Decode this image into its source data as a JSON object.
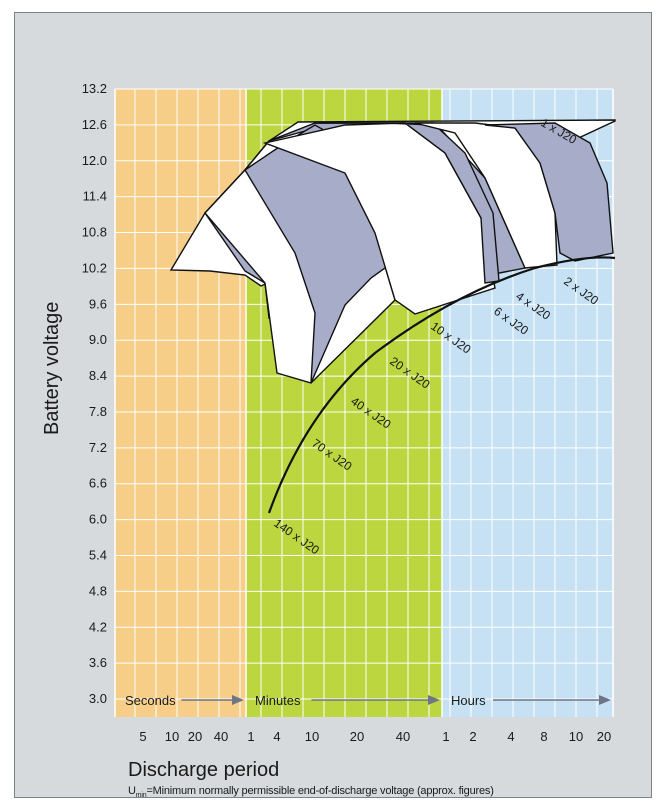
{
  "chart_data": {
    "type": "line",
    "ylabel": "Battery voltage",
    "xlabel": "Discharge period",
    "footnote": {
      "symbol": "U",
      "subscript": "min",
      "text": "=Minimum normally permissible end-of-discharge voltage (approx. figures)"
    },
    "yticks": [
      "13.2",
      "12.6",
      "12.0",
      "11.4",
      "10.8",
      "10.2",
      "9.6",
      "9.0",
      "8.4",
      "7.8",
      "7.2",
      "6.6",
      "6.0",
      "5.4",
      "4.8",
      "4.2",
      "3.6",
      "3.0"
    ],
    "ylim": [
      3.0,
      13.2
    ],
    "regions": [
      {
        "name": "Seconds",
        "color": "#f6ce88",
        "xticks": [
          "5",
          "10",
          "20",
          "40"
        ]
      },
      {
        "name": "Minutes",
        "color": "#bcd63f",
        "xticks": [
          "1",
          "4",
          "10",
          "20",
          "40"
        ]
      },
      {
        "name": "Hours",
        "color": "#c6e1f4",
        "xticks": [
          "1",
          "2",
          "4",
          "8",
          "10",
          "20"
        ]
      }
    ],
    "grid": true,
    "band_colors": [
      "#ffffff",
      "#a7adc9"
    ],
    "series": [
      {
        "name": "1 x J20"
      },
      {
        "name": "2 x J20"
      },
      {
        "name": "4 x J20"
      },
      {
        "name": "6 x J20"
      },
      {
        "name": "10 x J20"
      },
      {
        "name": "20 x J20"
      },
      {
        "name": "40 x J20"
      },
      {
        "name": "70 x J20"
      },
      {
        "name": "140 x J20"
      }
    ],
    "umin_curve": "Umin"
  }
}
